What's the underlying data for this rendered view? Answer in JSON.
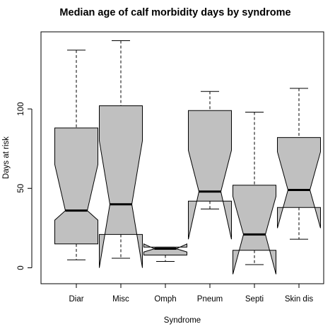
{
  "chart_data": {
    "type": "boxplot",
    "notched": true,
    "title": "Median age of calf morbidity days by syndrome",
    "xlabel": "Syndrome",
    "ylabel": "Days at risk",
    "ylim": [
      -9,
      152
    ],
    "yticks": [
      0,
      50,
      100
    ],
    "box_fill": "#c0c0c0",
    "categories": [
      "Diar",
      "Misc",
      "Omph",
      "Pneum",
      "Septi",
      "Skin dis"
    ],
    "boxes": [
      {
        "name": "Diar",
        "lower_whisker": 5,
        "q1": 15,
        "notch_low": 30,
        "median": 36,
        "notch_high": 65,
        "q3": 88,
        "upper_whisker": 137
      },
      {
        "name": "Misc",
        "lower_whisker": 6,
        "q1": 21,
        "notch_low": 0,
        "median": 40,
        "notch_high": 80,
        "q3": 102,
        "upper_whisker": 143
      },
      {
        "name": "Omph",
        "lower_whisker": 4,
        "q1": 8,
        "notch_low": 10,
        "median": 12,
        "notch_high": 15,
        "q3": 13,
        "upper_whisker": 13
      },
      {
        "name": "Pneum",
        "lower_whisker": 37,
        "q1": 42,
        "notch_low": 18,
        "median": 48,
        "notch_high": 74,
        "q3": 99,
        "upper_whisker": 111
      },
      {
        "name": "Septi",
        "lower_whisker": 2,
        "q1": 11,
        "notch_low": -4,
        "median": 21,
        "notch_high": 45,
        "q3": 52,
        "upper_whisker": 98
      },
      {
        "name": "Skin dis",
        "lower_whisker": 18,
        "q1": 38,
        "notch_low": 25,
        "median": 49,
        "notch_high": 73,
        "q3": 82,
        "upper_whisker": 113
      }
    ]
  }
}
